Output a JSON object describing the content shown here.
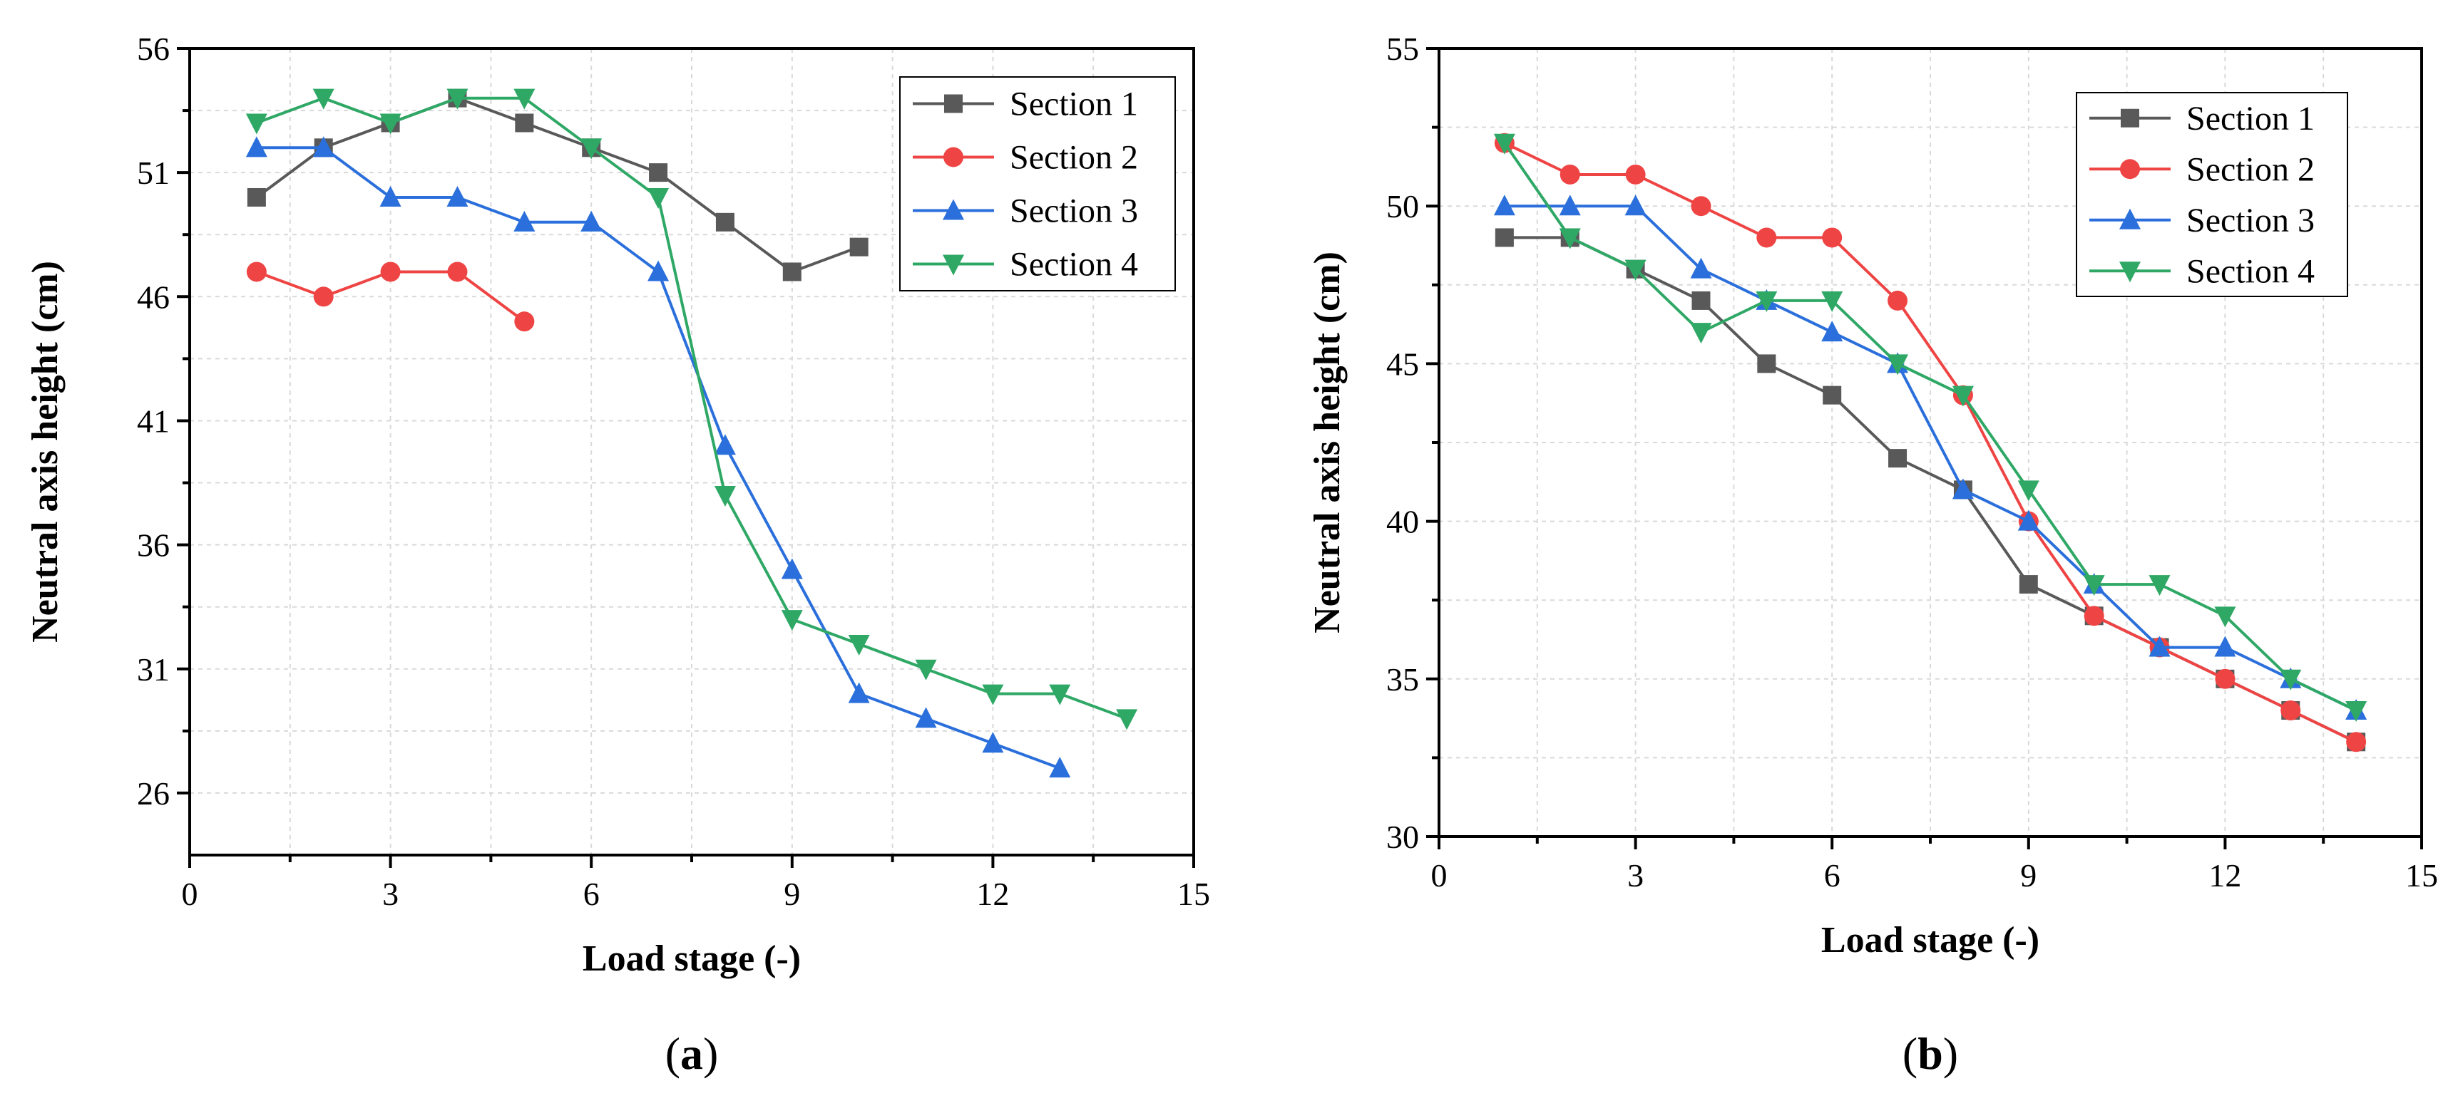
{
  "chart_data": [
    {
      "type": "line",
      "panel_label": "a",
      "xlabel": "Load stage (-)",
      "ylabel": "Neutral axis height (cm)",
      "xlim": [
        0,
        15
      ],
      "ylim": [
        23.5,
        56
      ],
      "xticks": [
        0,
        3,
        6,
        9,
        12,
        15
      ],
      "yticks": [
        26,
        31,
        36,
        41,
        46,
        51,
        56
      ],
      "grid": true,
      "legend_position": "top-right",
      "series": [
        {
          "name": "Section 1",
          "color": "#595959",
          "marker": "square",
          "x": [
            1,
            2,
            3,
            4,
            5,
            6,
            7,
            8,
            9,
            10
          ],
          "y": [
            50,
            52,
            53,
            54,
            53,
            52,
            51,
            49,
            47,
            48
          ]
        },
        {
          "name": "Section 2",
          "color": "#ef4444",
          "marker": "circle",
          "x": [
            1,
            2,
            3,
            4,
            5
          ],
          "y": [
            47,
            46,
            47,
            47,
            45
          ]
        },
        {
          "name": "Section 3",
          "color": "#2a6fdb",
          "marker": "triangle-up",
          "x": [
            1,
            2,
            3,
            4,
            5,
            6,
            7,
            8,
            9,
            10,
            11,
            12,
            13
          ],
          "y": [
            52,
            52,
            50,
            50,
            49,
            49,
            47,
            40,
            35,
            30,
            29,
            28,
            27
          ]
        },
        {
          "name": "Section 4",
          "color": "#2fa866",
          "marker": "triangle-down",
          "x": [
            1,
            2,
            3,
            4,
            5,
            6,
            7,
            8,
            9,
            10,
            11,
            12,
            13,
            14
          ],
          "y": [
            53,
            54,
            53,
            54,
            54,
            52,
            50,
            38,
            33,
            32,
            31,
            30,
            30,
            29
          ]
        }
      ]
    },
    {
      "type": "line",
      "panel_label": "b",
      "xlabel": "Load stage (-)",
      "ylabel": "Neutral axis height (cm)",
      "xlim": [
        0,
        15
      ],
      "ylim": [
        30,
        55
      ],
      "xticks": [
        0,
        3,
        6,
        9,
        12,
        15
      ],
      "yticks": [
        30,
        35,
        40,
        45,
        50,
        55
      ],
      "grid": true,
      "legend_position": "top-right",
      "series": [
        {
          "name": "Section 1",
          "color": "#595959",
          "marker": "square",
          "x": [
            1,
            2,
            3,
            4,
            5,
            6,
            7,
            8,
            9,
            10,
            11,
            12,
            13,
            14
          ],
          "y": [
            49,
            49,
            48,
            47,
            45,
            44,
            42,
            41,
            38,
            37,
            36,
            35,
            34,
            33
          ]
        },
        {
          "name": "Section 2",
          "color": "#ef4444",
          "marker": "circle",
          "x": [
            1,
            2,
            3,
            4,
            5,
            6,
            7,
            8,
            9,
            10,
            11,
            12,
            13,
            14
          ],
          "y": [
            52,
            51,
            51,
            50,
            49,
            49,
            47,
            44,
            40,
            37,
            36,
            35,
            34,
            33
          ]
        },
        {
          "name": "Section 3",
          "color": "#2a6fdb",
          "marker": "triangle-up",
          "x": [
            1,
            2,
            3,
            4,
            5,
            6,
            7,
            8,
            9,
            10,
            11,
            12,
            13,
            14
          ],
          "y": [
            50,
            50,
            50,
            48,
            47,
            46,
            45,
            41,
            40,
            38,
            36,
            36,
            35,
            34
          ]
        },
        {
          "name": "Section 4",
          "color": "#2fa866",
          "marker": "triangle-down",
          "x": [
            1,
            2,
            3,
            4,
            5,
            6,
            7,
            8,
            9,
            10,
            11,
            12,
            13,
            14
          ],
          "y": [
            52,
            49,
            48,
            46,
            47,
            47,
            45,
            44,
            41,
            38,
            38,
            37,
            35,
            34
          ]
        }
      ]
    }
  ]
}
